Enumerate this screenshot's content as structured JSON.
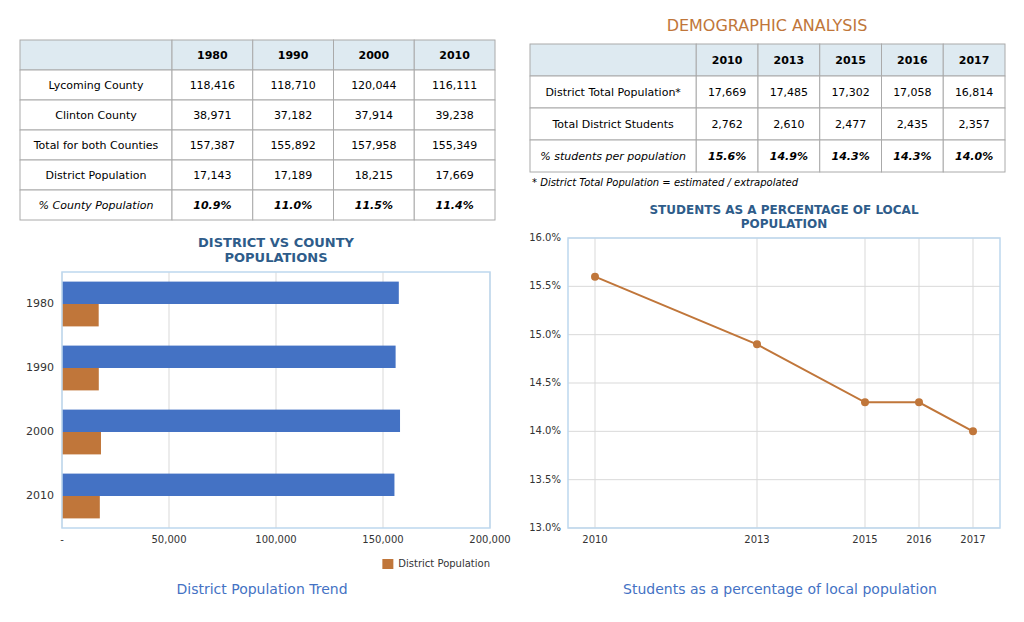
{
  "title": "DEMOGRAPHIC ANALYSIS",
  "chart_data": [
    {
      "type": "table",
      "columns": [
        null,
        "1980",
        "1990",
        "2000",
        "2010"
      ],
      "rows": [
        [
          "Lycoming County",
          "118,416",
          "118,710",
          "120,044",
          "116,111"
        ],
        [
          "Clinton County",
          "38,971",
          "37,182",
          "37,914",
          "39,238"
        ],
        [
          "Total for both Counties",
          "157,387",
          "155,892",
          "157,958",
          "155,349"
        ],
        [
          "District Population",
          "17,143",
          "17,189",
          "18,215",
          "17,669"
        ],
        [
          "% County Population",
          "10.9%",
          "11.0%",
          "11.5%",
          "11.4%"
        ]
      ]
    },
    {
      "type": "bar",
      "orientation": "horizontal",
      "title": "DISTRICT VS COUNTY\nPOPULATIONS",
      "categories": [
        "2010",
        "2000",
        "1990",
        "1980"
      ],
      "series": [
        {
          "color": "#4472C4",
          "values": [
            155349,
            157958,
            155892,
            157387
          ]
        },
        {
          "name": "District Population",
          "color": "#C0763A",
          "values": [
            17669,
            18215,
            17189,
            17143
          ]
        }
      ],
      "xlim": [
        0,
        200000
      ],
      "xticks": [
        {
          "value": 0,
          "label": "-"
        },
        {
          "value": 50000,
          "label": "50,000"
        },
        {
          "value": 100000,
          "label": "100,000"
        },
        {
          "value": 150000,
          "label": "150,000"
        },
        {
          "value": 200000,
          "label": "200,000"
        }
      ],
      "grid": "x",
      "legend": "lower right",
      "annotations": [
        "District Population Trend"
      ]
    },
    {
      "type": "table",
      "columns": [
        null,
        "2010",
        "2013",
        "2015",
        "2016",
        "2017"
      ],
      "rows": [
        [
          "District Total Population*",
          "17,669",
          "17,485",
          "17,302",
          "17,058",
          "16,814"
        ],
        [
          "Total District Students",
          "2,762",
          "2,610",
          "2,477",
          "2,435",
          "2,357"
        ],
        [
          "% students per population",
          "15.6%",
          "14.9%",
          "14.3%",
          "14.3%",
          "14.0%"
        ]
      ],
      "annotations": [
        "* District Total Population = estimated / extrapolated"
      ]
    },
    {
      "type": "line",
      "title": "STUDENTS AS A PERCENTAGE OF LOCAL\nPOPULATION",
      "x": [
        2010,
        2013,
        2015,
        2016,
        2017
      ],
      "values": [
        15.6,
        14.9,
        14.3,
        14.3,
        14.0
      ],
      "color": "#C0763A",
      "marker": "circle",
      "xlim": [
        2009.5,
        2017.5
      ],
      "xticks": [
        2010,
        2013,
        2015,
        2016,
        2017
      ],
      "ylim": [
        13.0,
        16.0
      ],
      "yticks": [
        {
          "value": 13.0,
          "label": "13.0%"
        },
        {
          "value": 13.5,
          "label": "13.5%"
        },
        {
          "value": 14.0,
          "label": "14.0%"
        },
        {
          "value": 14.5,
          "label": "14.5%"
        },
        {
          "value": 15.0,
          "label": "15.0%"
        },
        {
          "value": 15.5,
          "label": "15.5%"
        },
        {
          "value": 16.0,
          "label": "16.0%"
        }
      ],
      "grid": true,
      "annotations": [
        "Students as a percentage of local population"
      ]
    }
  ]
}
